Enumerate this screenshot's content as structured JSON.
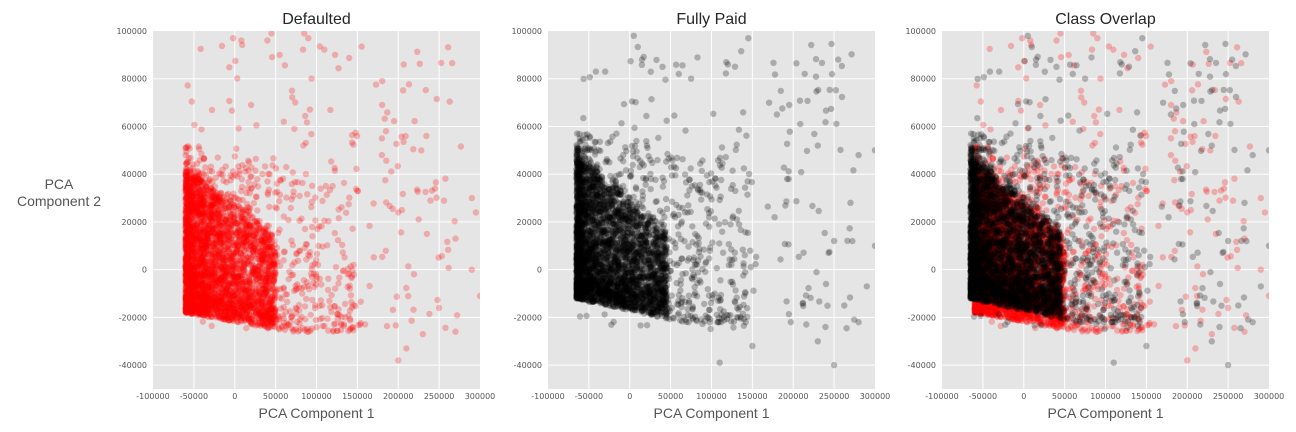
{
  "chart_data": [
    {
      "type": "scatter",
      "title": "Defaulted",
      "xlabel": "PCA Component 1",
      "ylabel": "PCA\nComponent 2",
      "xlim": [
        -100000,
        300000
      ],
      "ylim": [
        -50000,
        100000
      ],
      "xticks": [
        -100000,
        -50000,
        0,
        50000,
        100000,
        150000,
        200000,
        250000,
        300000
      ],
      "yticks": [
        -40000,
        -20000,
        0,
        20000,
        40000,
        60000,
        80000,
        100000
      ],
      "grid": true,
      "series": [
        {
          "color": "#ff0000",
          "alpha": 0.25,
          "n_points": 4000,
          "core": {
            "x_min": -60000,
            "x_peak": 0,
            "y_bottom_left": -18000,
            "y_bottom_right": -26000,
            "dense_y_top": 40000
          },
          "notable_points": [
            [
              -2000,
              97000
            ],
            [
              8000,
              96000
            ],
            [
              40000,
              96000
            ],
            [
              45000,
              99000
            ],
            [
              85000,
              99000
            ],
            [
              90000,
              97000
            ],
            [
              55000,
              90000
            ],
            [
              70000,
              75000
            ],
            [
              60000,
              62000
            ],
            [
              20000,
              69000
            ],
            [
              185000,
              58000
            ],
            [
              180000,
              48000
            ],
            [
              150000,
              33000
            ],
            [
              200000,
              24000
            ],
            [
              225000,
              21000
            ],
            [
              235000,
              15000
            ],
            [
              270000,
              13000
            ],
            [
              290000,
              30000
            ],
            [
              295000,
              24000
            ],
            [
              300000,
              -11000
            ],
            [
              290000,
              0
            ],
            [
              250000,
              -16000
            ],
            [
              270000,
              -26000
            ],
            [
              230000,
              -27000
            ],
            [
              210000,
              -33000
            ],
            [
              200000,
              -38000
            ]
          ]
        }
      ]
    },
    {
      "type": "scatter",
      "title": "Fully Paid",
      "xlabel": "PCA Component 1",
      "ylabel": "",
      "xlim": [
        -100000,
        300000
      ],
      "ylim": [
        -50000,
        100000
      ],
      "xticks": [
        -100000,
        -50000,
        0,
        50000,
        100000,
        150000,
        200000,
        250000,
        300000
      ],
      "yticks": [
        -40000,
        -20000,
        0,
        20000,
        40000,
        60000,
        80000,
        100000
      ],
      "grid": true,
      "series": [
        {
          "color": "#000000",
          "alpha": 0.25,
          "n_points": 4000,
          "core": {
            "x_min": -65000,
            "x_peak": 0,
            "y_bottom_left": -12000,
            "y_bottom_right": -22000,
            "dense_y_top": 45000
          },
          "notable_points": [
            [
              5000,
              98000
            ],
            [
              15000,
              88000
            ],
            [
              -30000,
              83000
            ],
            [
              40000,
              85000
            ],
            [
              60000,
              82000
            ],
            [
              75000,
              80000
            ],
            [
              120000,
              86000
            ],
            [
              145000,
              97000
            ],
            [
              255000,
              88000
            ],
            [
              195000,
              69000
            ],
            [
              180000,
              65000
            ],
            [
              230000,
              52000
            ],
            [
              280000,
              48000
            ],
            [
              300000,
              50000
            ],
            [
              270000,
              28000
            ],
            [
              300000,
              10000
            ],
            [
              250000,
              12000
            ],
            [
              290000,
              -7000
            ],
            [
              230000,
              -30000
            ],
            [
              250000,
              -40000
            ],
            [
              280000,
              -22000
            ],
            [
              150000,
              -32000
            ],
            [
              110000,
              -39000
            ]
          ]
        }
      ]
    },
    {
      "type": "scatter",
      "title": "Class Overlap",
      "xlabel": "PCA Component 1",
      "ylabel": "",
      "xlim": [
        -100000,
        300000
      ],
      "ylim": [
        -50000,
        100000
      ],
      "xticks": [
        -100000,
        -50000,
        0,
        50000,
        100000,
        150000,
        200000,
        250000,
        300000
      ],
      "yticks": [
        -40000,
        -20000,
        0,
        20000,
        40000,
        60000,
        80000,
        100000
      ],
      "grid": true,
      "series": [
        {
          "ref": "Defaulted",
          "color": "#ff0000",
          "alpha": 0.25
        },
        {
          "ref": "Fully Paid",
          "color": "#000000",
          "alpha": 0.25
        }
      ]
    }
  ]
}
